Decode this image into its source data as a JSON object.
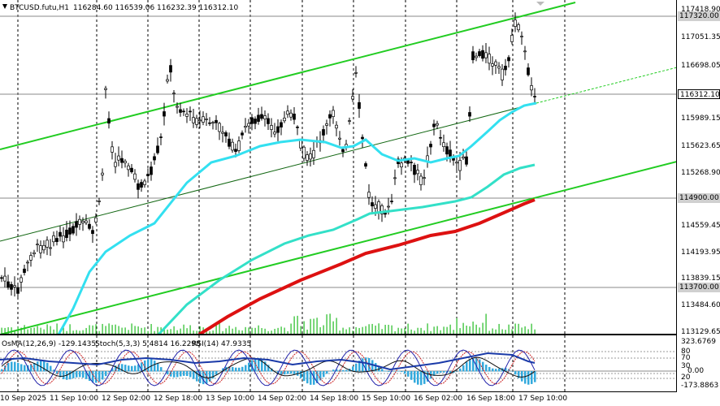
{
  "header": {
    "symbol": "BTCUSD.futu,H1",
    "ohlc": "116284.60 116539.06 116232.39 116312.10"
  },
  "oscillator_header": {
    "osma": "OsMA(12,26,9) -129.1435",
    "stoch": "Stoch(5,3,3) 5.4814 16.2298",
    "rsi": "RSI(14) 47.9335"
  },
  "price_axis": {
    "ticks": [
      "117418.90",
      "117051.35",
      "116698.05",
      "115989.15",
      "115623.65",
      "115268.90",
      "114559.45",
      "114193.95",
      "113839.15",
      "113484.60",
      "113129.65"
    ],
    "labels": {
      "upper_level": "117320.00",
      "current": "116312.10",
      "mid_level": "114900.00",
      "lower_level": "113700.00"
    }
  },
  "oscillator_axis": {
    "ticks": [
      "323.6769",
      "80",
      "70",
      "30",
      "20",
      "0.00",
      "-173.8863"
    ]
  },
  "time_axis": {
    "ticks": [
      "10 Sep 2025",
      "11 Sep 10:00",
      "12 Sep 02:00",
      "12 Sep 18:00",
      "13 Sep 10:00",
      "14 Sep 02:00",
      "14 Sep 18:00",
      "15 Sep 10:00",
      "16 Sep 02:00",
      "16 Sep 18:00",
      "17 Sep 10:00"
    ]
  },
  "colors": {
    "ema_fast": "#33e0f0",
    "ema_mid": "#33e0c8",
    "ema_slow": "#dd1111",
    "channel": "#22cc22",
    "candle": "#000000",
    "volume": "#22bb22",
    "osma_hist": "#33aadd",
    "stoch_main": "#2222aa",
    "stoch_signal": "#cc2222",
    "rsi": "#111111"
  }
}
